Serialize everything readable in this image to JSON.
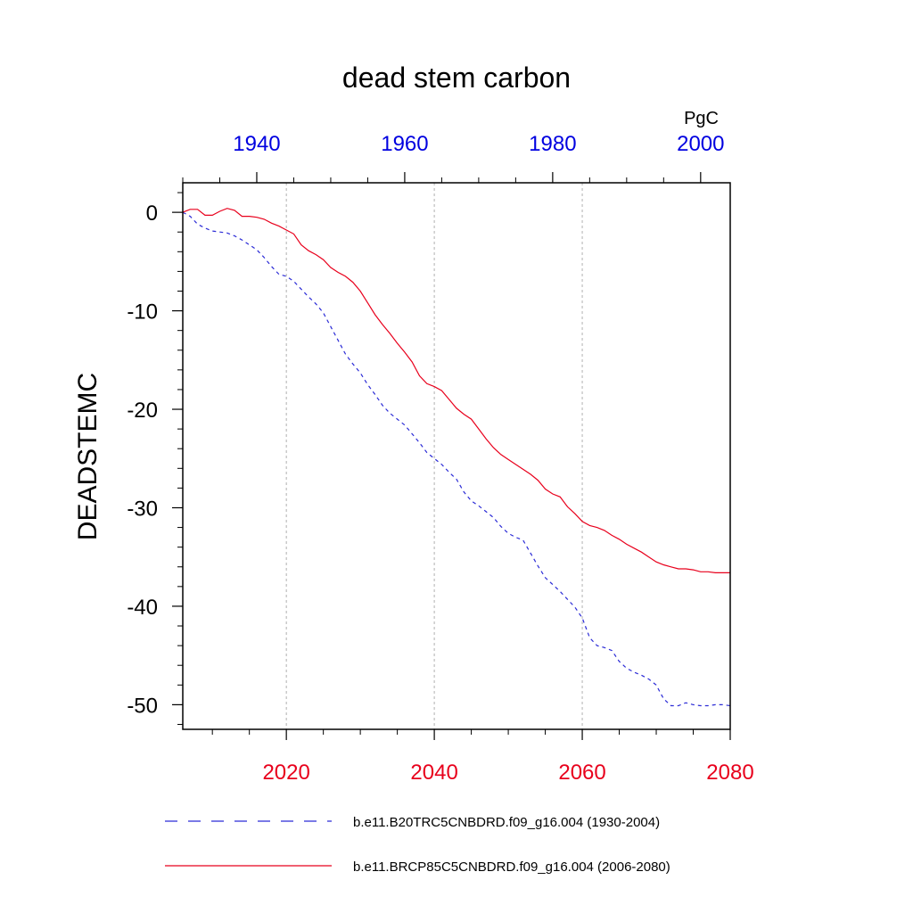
{
  "chart_data": {
    "type": "line",
    "title": "dead stem carbon",
    "ylabel": "DEADSTEMC",
    "units": "PgC",
    "grid": "vertical-dotted",
    "ylim": [
      -52.5,
      3
    ],
    "yticks": [
      0,
      -10,
      -20,
      -30,
      -40,
      -50
    ],
    "ytick_labels": [
      "0",
      "-10",
      "-20",
      "-30",
      "-40",
      "-50"
    ],
    "x_bottom": {
      "range": [
        2006,
        2080
      ],
      "ticks": [
        2020,
        2040,
        2060,
        2080
      ],
      "labels": [
        "2020",
        "2040",
        "2060",
        "2080"
      ],
      "color": "#e8001c"
    },
    "x_top": {
      "range": [
        1930,
        2004
      ],
      "ticks": [
        1940,
        1960,
        1980,
        2000
      ],
      "labels": [
        "1940",
        "1960",
        "1980",
        "2000"
      ],
      "color": "#0000e0"
    },
    "series": [
      {
        "name": "b.e11.B20TRC5CNBDRD.f09_g16.004 (1930-2004)",
        "axis": "top",
        "color": "#2b2bd6",
        "dash": "dashed",
        "x": [
          1930,
          1931,
          1932,
          1933,
          1934,
          1935,
          1936,
          1937,
          1938,
          1939,
          1940,
          1941,
          1942,
          1943,
          1944,
          1945,
          1946,
          1947,
          1948,
          1949,
          1950,
          1951,
          1952,
          1953,
          1954,
          1955,
          1956,
          1957,
          1958,
          1959,
          1960,
          1961,
          1962,
          1963,
          1964,
          1965,
          1966,
          1967,
          1968,
          1969,
          1970,
          1971,
          1972,
          1973,
          1974,
          1975,
          1976,
          1977,
          1978,
          1979,
          1980,
          1981,
          1982,
          1983,
          1984,
          1985,
          1986,
          1987,
          1988,
          1989,
          1990,
          1991,
          1992,
          1993,
          1994,
          1995,
          1996,
          1997,
          1998,
          1999,
          2000,
          2001,
          2002,
          2003,
          2004
        ],
        "y": [
          0,
          -0.4,
          -1.2,
          -1.6,
          -1.9,
          -2.0,
          -2.1,
          -2.4,
          -2.8,
          -3.3,
          -3.8,
          -4.6,
          -5.5,
          -6.3,
          -6.5,
          -7.0,
          -7.8,
          -8.6,
          -9.3,
          -10.2,
          -11.6,
          -13.0,
          -14.4,
          -15.4,
          -16.3,
          -17.5,
          -18.5,
          -19.6,
          -20.4,
          -21.0,
          -21.6,
          -22.5,
          -23.4,
          -24.4,
          -25.0,
          -25.6,
          -26.4,
          -27.1,
          -28.4,
          -29.3,
          -29.8,
          -30.4,
          -31.0,
          -31.9,
          -32.6,
          -33.0,
          -33.3,
          -34.6,
          -35.9,
          -37.1,
          -37.8,
          -38.5,
          -39.3,
          -40.1,
          -41.2,
          -43.2,
          -44.0,
          -44.2,
          -44.5,
          -45.6,
          -46.3,
          -46.7,
          -47.0,
          -47.4,
          -48.0,
          -49.4,
          -50.1,
          -50.1,
          -49.8,
          -50.0,
          -50.1,
          -50.1,
          -50.0,
          -50.0,
          -50.1
        ]
      },
      {
        "name": "b.e11.BRCP85C5CNBDRD.f09_g16.004 (2006-2080)",
        "axis": "bottom",
        "color": "#e8001c",
        "dash": "solid",
        "x": [
          2006,
          2007,
          2008,
          2009,
          2010,
          2011,
          2012,
          2013,
          2014,
          2015,
          2016,
          2017,
          2018,
          2019,
          2020,
          2021,
          2022,
          2023,
          2024,
          2025,
          2026,
          2027,
          2028,
          2029,
          2030,
          2031,
          2032,
          2033,
          2034,
          2035,
          2036,
          2037,
          2038,
          2039,
          2040,
          2041,
          2042,
          2043,
          2044,
          2045,
          2046,
          2047,
          2048,
          2049,
          2050,
          2051,
          2052,
          2053,
          2054,
          2055,
          2056,
          2057,
          2058,
          2059,
          2060,
          2061,
          2062,
          2063,
          2064,
          2065,
          2066,
          2067,
          2068,
          2069,
          2070,
          2071,
          2072,
          2073,
          2074,
          2075,
          2076,
          2077,
          2078,
          2079,
          2080
        ],
        "y": [
          0,
          0.3,
          0.3,
          -0.3,
          -0.3,
          0.1,
          0.4,
          0.2,
          -0.4,
          -0.4,
          -0.5,
          -0.7,
          -1.1,
          -1.4,
          -1.8,
          -2.2,
          -3.3,
          -3.9,
          -4.3,
          -4.8,
          -5.6,
          -6.1,
          -6.5,
          -7.1,
          -8.0,
          -9.2,
          -10.4,
          -11.4,
          -12.3,
          -13.3,
          -14.2,
          -15.2,
          -16.6,
          -17.4,
          -17.7,
          -18.1,
          -19.0,
          -19.9,
          -20.5,
          -21.0,
          -22.0,
          -23.0,
          -23.9,
          -24.6,
          -25.1,
          -25.6,
          -26.1,
          -26.6,
          -27.2,
          -28.1,
          -28.6,
          -28.9,
          -29.9,
          -30.6,
          -31.4,
          -31.8,
          -32.0,
          -32.3,
          -32.8,
          -33.2,
          -33.7,
          -34.1,
          -34.5,
          -35.0,
          -35.5,
          -35.8,
          -36.0,
          -36.2,
          -36.2,
          -36.3,
          -36.5,
          -36.5,
          -36.6,
          -36.6,
          -36.6
        ]
      }
    ]
  }
}
